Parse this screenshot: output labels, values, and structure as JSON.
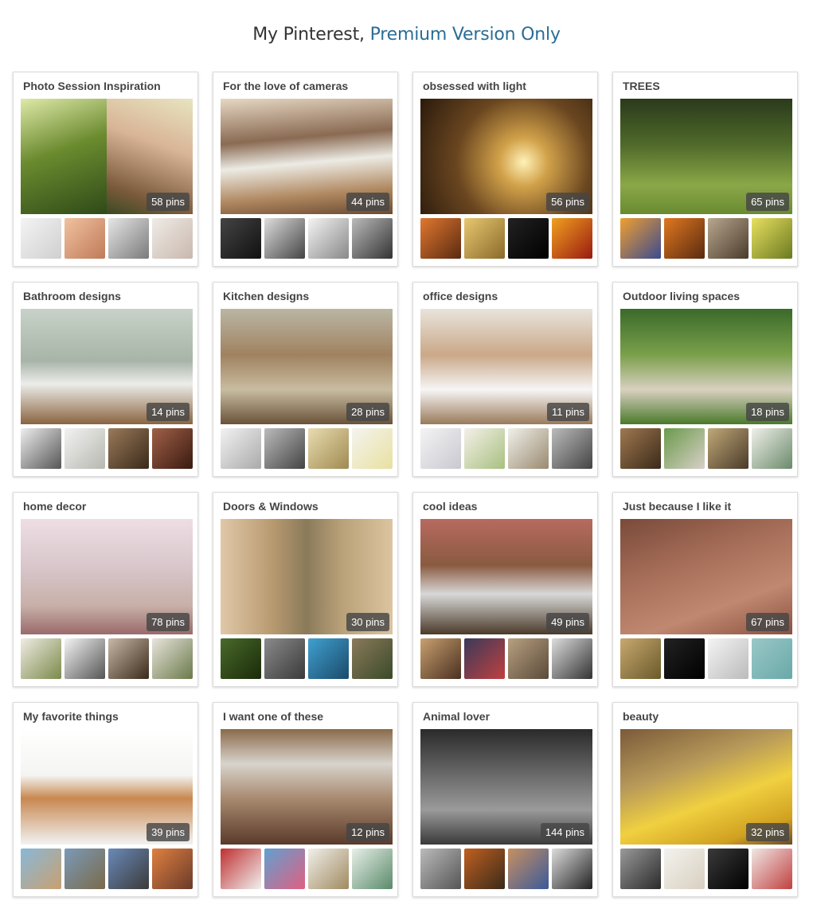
{
  "header": {
    "title_plain": "My Pinterest, ",
    "title_accent": "Premium Version Only"
  },
  "boards": [
    {
      "title": "Photo Session Inspiration",
      "pins": "58 pins",
      "cover": [
        "linear-gradient(160deg,#dfe9a8 0%,#6b8b2f 45%,#2f4a18 100%)",
        "linear-gradient(200deg,#e8e4c0 0%,#d8b496 40%,#7a5a3a 80%,#3a4a22 100%)"
      ],
      "thumbs": [
        "linear-gradient(135deg,#f4f4f4,#cfcfcf)",
        "linear-gradient(135deg,#f0c2a0,#c07a58)",
        "linear-gradient(135deg,#e6e6e6,#7a7a7a)",
        "linear-gradient(135deg,#f0ebe6,#c8b8ae)"
      ]
    },
    {
      "title": "For the love of cameras",
      "pins": "44 pins",
      "cover": [
        "linear-gradient(175deg,#e6d8c4 0%,#8a6a52 35%,#ecebe4 55%,#b08860 80%,#6a4a32 100%)"
      ],
      "thumbs": [
        "linear-gradient(135deg,#444,#111)",
        "linear-gradient(135deg,#ddd,#444)",
        "linear-gradient(135deg,#f4f4f4,#888)",
        "linear-gradient(135deg,#bbb,#333)"
      ]
    },
    {
      "title": "obsessed with light",
      "pins": "56 pins",
      "cover": [
        "radial-gradient(circle at 60% 55%,#fff2b8 0%,#d2a24a 20%,#6a4620 55%,#2a1a0c 100%)"
      ],
      "thumbs": [
        "linear-gradient(135deg,#e07830,#5a2a10)",
        "linear-gradient(135deg,#e8c870,#8a6a2a)",
        "linear-gradient(135deg,#222,#000)",
        "linear-gradient(135deg,#f0a020,#9a1a10)"
      ]
    },
    {
      "title": "TREES",
      "pins": "65 pins",
      "cover": [
        "linear-gradient(180deg,#2a3a1c 0%,#506a2a 40%,#8aa848 75%,#6a8a30 100%)"
      ],
      "thumbs": [
        "linear-gradient(135deg,#f0a030,#3a4a90)",
        "linear-gradient(135deg,#e07820,#5a2a10)",
        "linear-gradient(135deg,#b8a890,#4a3a2a)",
        "linear-gradient(135deg,#e8e060,#6a7a20)"
      ]
    },
    {
      "title": "Bathroom designs",
      "pins": "14 pins",
      "cover": [
        "linear-gradient(180deg,#c8d2c8 0%,#a8b4a8 45%,#ecedea 65%,#8a6440 100%)"
      ],
      "thumbs": [
        "linear-gradient(135deg,#eee,#555)",
        "linear-gradient(135deg,#f2f2f2,#b8b8b0)",
        "linear-gradient(135deg,#9a7a5a,#3a2a1a)",
        "linear-gradient(135deg,#a06048,#3a1a10)"
      ]
    },
    {
      "title": "Kitchen designs",
      "pins": "28 pins",
      "cover": [
        "linear-gradient(180deg,#bab6a4 0%,#a08260 40%,#c8bca0 70%,#6a5238 100%)"
      ],
      "thumbs": [
        "linear-gradient(135deg,#f2f2f2,#aaa)",
        "linear-gradient(135deg,#bbb,#444)",
        "linear-gradient(135deg,#e8dcb0,#a08a50)",
        "linear-gradient(135deg,#f4f4f0,#e8e0a0)"
      ]
    },
    {
      "title": "office designs",
      "pins": "11 pins",
      "cover": [
        "linear-gradient(180deg,#e8e4dc 0%,#caa888 40%,#f6f6f6 70%,#9a7a5a 100%)"
      ],
      "thumbs": [
        "linear-gradient(135deg,#f4f4f4,#c8c8d0)",
        "linear-gradient(135deg,#f4f0e8,#a8c080)",
        "linear-gradient(135deg,#f0f0ea,#9a8a70)",
        "linear-gradient(135deg,#bbb,#444)"
      ]
    },
    {
      "title": "Outdoor living spaces",
      "pins": "18 pins",
      "cover": [
        "linear-gradient(180deg,#3a6a2a 0%,#7aa04a 40%,#d8d0c0 70%,#4a7a2a 100%)"
      ],
      "thumbs": [
        "linear-gradient(135deg,#a07850,#3a2a1a)",
        "linear-gradient(135deg,#6a9a4a,#d8d0c8)",
        "linear-gradient(135deg,#c0a878,#4a3a2a)",
        "linear-gradient(135deg,#f0f0ea,#6a8a6a)"
      ]
    },
    {
      "title": "home decor",
      "pins": "78 pins",
      "cover": [
        "linear-gradient(180deg,#eedee4 0%,#d6c4c8 45%,#c8b0a8 75%,#9a6a6a 100%)"
      ],
      "thumbs": [
        "linear-gradient(135deg,#f0ece4,#7a8a4a)",
        "linear-gradient(135deg,#f4f4f4,#555)",
        "linear-gradient(135deg,#c8b8a8,#3a2a1a)",
        "linear-gradient(135deg,#e8e4dc,#6a7a4a)"
      ]
    },
    {
      "title": "Doors & Windows",
      "pins": "30 pins",
      "cover": [
        "linear-gradient(90deg,#e0c8a8 0%,#b89a70 30%,#8a7a5a 50%,#b8a078 70%,#dcc4a0 100%)"
      ],
      "thumbs": [
        "linear-gradient(135deg,#4a6a2a,#1a2a0a)",
        "linear-gradient(135deg,#8a8a8a,#3a3a3a)",
        "linear-gradient(135deg,#40a0d0,#1a4a6a)",
        "linear-gradient(135deg,#8a7a5a,#3a4a2a)"
      ]
    },
    {
      "title": "cool ideas",
      "pins": "49 pins",
      "cover": [
        "linear-gradient(180deg,#b86a60 0%,#8a5a40 40%,#d8d8d8 65%,#4a3a2a 100%)"
      ],
      "thumbs": [
        "linear-gradient(135deg,#c8a070,#4a3020)",
        "linear-gradient(135deg,#3a3a5a,#c04040)",
        "linear-gradient(135deg,#b8a080,#5a4a3a)",
        "linear-gradient(135deg,#ddd,#333)"
      ]
    },
    {
      "title": "Just because I like it",
      "pins": "67 pins",
      "cover": [
        "linear-gradient(160deg,#7a4a3a 0%,#a8705a 40%,#c08870 70%,#8a5040 100%)"
      ],
      "thumbs": [
        "linear-gradient(135deg,#c8a870,#6a5a2a)",
        "linear-gradient(135deg,#222,#000)",
        "linear-gradient(135deg,#f4f4f4,#bbb)",
        "linear-gradient(135deg,#9ac8c8,#6aa8a8)"
      ]
    },
    {
      "title": "My favorite things",
      "pins": "39 pins",
      "cover": [
        "linear-gradient(180deg,#ffffff 0%,#f4f4f2 40%,#c88850 60%,#f2f2f2 100%)"
      ],
      "thumbs": [
        "linear-gradient(135deg,#88b8d8,#c8a070)",
        "linear-gradient(135deg,#7a9ab8,#7a6a4a)",
        "linear-gradient(135deg,#6a8ab8,#3a3a3a)",
        "linear-gradient(135deg,#e08040,#6a3a2a)"
      ]
    },
    {
      "title": "I want one of these",
      "pins": "12 pins",
      "cover": [
        "linear-gradient(180deg,#8a6a4a 0%,#d8d4cc 30%,#a88a70 60%,#5a3a2a 100%)"
      ],
      "thumbs": [
        "linear-gradient(135deg,#c03030,#f0f0f0)",
        "linear-gradient(135deg,#60a0d0,#e06080)",
        "linear-gradient(135deg,#f0f0ea,#a08a60)",
        "linear-gradient(135deg,#e8f0e8,#5a8a6a)"
      ]
    },
    {
      "title": "Animal lover",
      "pins": "144 pins",
      "cover": [
        "linear-gradient(180deg,#2a2a2a 0%,#6a6a6a 40%,#9a9a9a 70%,#3a3a3a 100%)"
      ],
      "thumbs": [
        "linear-gradient(135deg,#bbb,#555)",
        "linear-gradient(135deg,#c06020,#3a2a1a)",
        "linear-gradient(135deg,#c89060,#3a5a9a)",
        "linear-gradient(135deg,#ddd,#222)"
      ]
    },
    {
      "title": "beauty",
      "pins": "32 pins",
      "cover": [
        "linear-gradient(160deg,#7a5a3a 0%,#b89a5a 35%,#f0d040 60%,#d0a020 85%,#6a4a2a 100%)"
      ],
      "thumbs": [
        "linear-gradient(135deg,#9a9a9a,#2a2a2a)",
        "linear-gradient(135deg,#f4f2ee,#d8d0c0)",
        "linear-gradient(135deg,#3a3a3a,#000)",
        "linear-gradient(135deg,#f0e8e4,#c04040)"
      ]
    }
  ]
}
